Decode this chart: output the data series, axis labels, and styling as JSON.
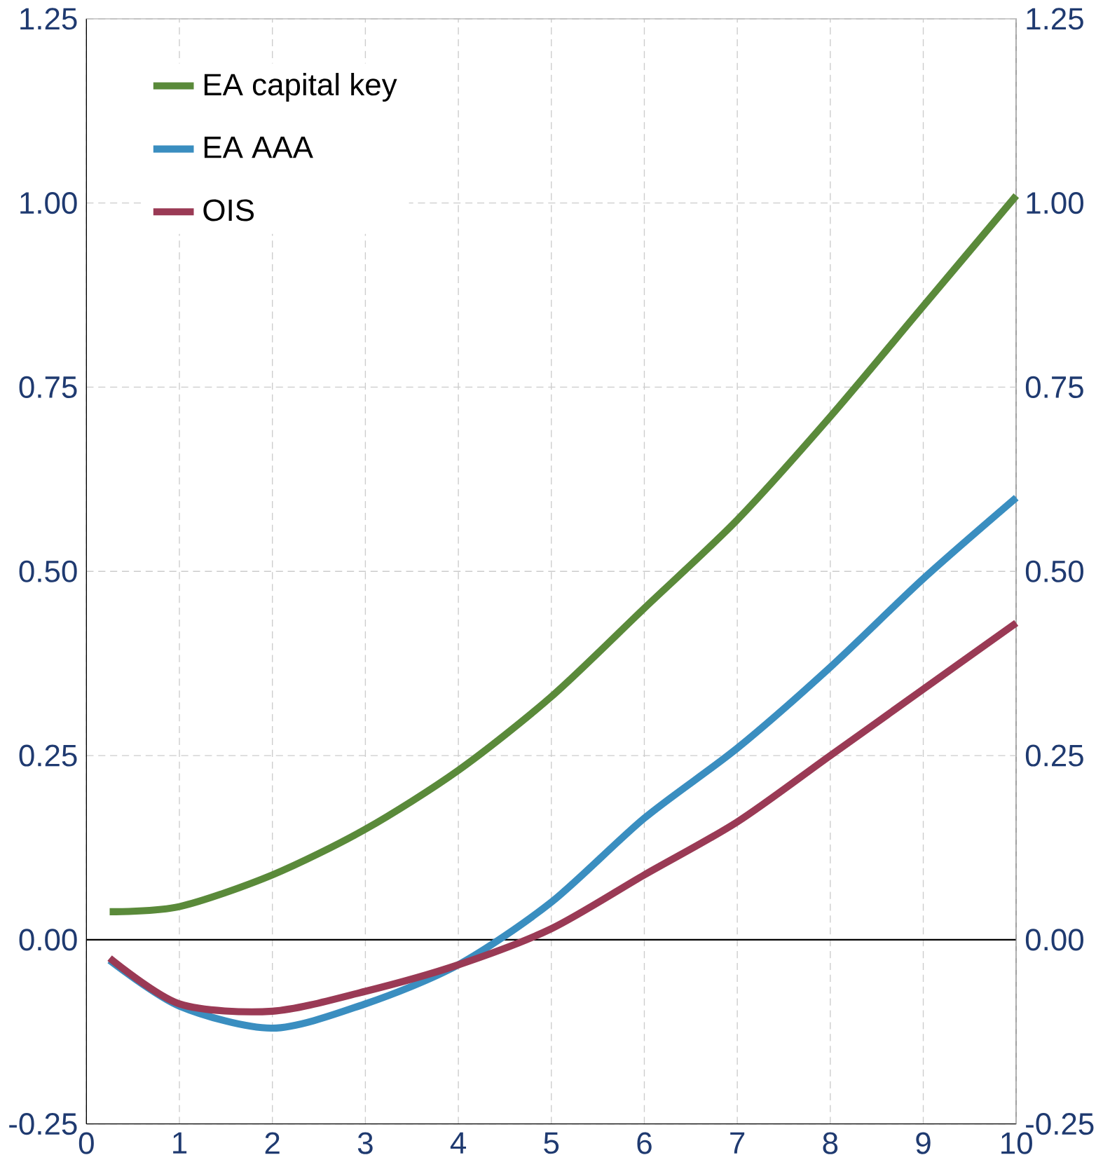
{
  "chart_data": {
    "type": "line",
    "x": [
      0.25,
      1,
      2,
      3,
      4,
      5,
      6,
      7,
      8,
      9,
      10
    ],
    "series": [
      {
        "name": "EA capital key",
        "color": "#5a8a3a",
        "values": [
          0.038,
          0.045,
          0.088,
          0.15,
          0.23,
          0.33,
          0.45,
          0.57,
          0.71,
          0.86,
          1.01
        ]
      },
      {
        "name": "EA AAA",
        "color": "#3a8ec0",
        "values": [
          -0.028,
          -0.09,
          -0.12,
          -0.087,
          -0.034,
          0.051,
          0.165,
          0.26,
          0.37,
          0.49,
          0.6
        ]
      },
      {
        "name": "OIS",
        "color": "#9a3a55",
        "values": [
          -0.025,
          -0.087,
          -0.097,
          -0.07,
          -0.034,
          0.015,
          0.088,
          0.16,
          0.25,
          0.34,
          0.43
        ]
      }
    ],
    "xlim": [
      0,
      10
    ],
    "xticks": [
      0,
      1,
      2,
      3,
      4,
      5,
      6,
      7,
      8,
      9,
      10
    ],
    "ylim": [
      -0.25,
      1.25
    ],
    "yticks": [
      {
        "value": -0.25,
        "label": "-0.25"
      },
      {
        "value": 0,
        "label": "0.00"
      },
      {
        "value": 0.25,
        "label": "0.25"
      },
      {
        "value": 0.5,
        "label": "0.50"
      },
      {
        "value": 0.75,
        "label": "0.75"
      },
      {
        "value": 1,
        "label": "1.00"
      },
      {
        "value": 1.25,
        "label": "1.25"
      }
    ],
    "y2lim": [
      -0.25,
      1.25
    ],
    "y2ticks": [
      {
        "value": -0.25,
        "label": "-0.25"
      },
      {
        "value": 0,
        "label": "0.00"
      },
      {
        "value": 0.25,
        "label": "0.25"
      },
      {
        "value": 0.5,
        "label": "0.50"
      },
      {
        "value": 0.75,
        "label": "0.75"
      },
      {
        "value": 1,
        "label": "1.00"
      },
      {
        "value": 1.25,
        "label": "1.25"
      }
    ],
    "grid": true,
    "legend": "top left",
    "marker": "none",
    "line_style": "solid"
  }
}
